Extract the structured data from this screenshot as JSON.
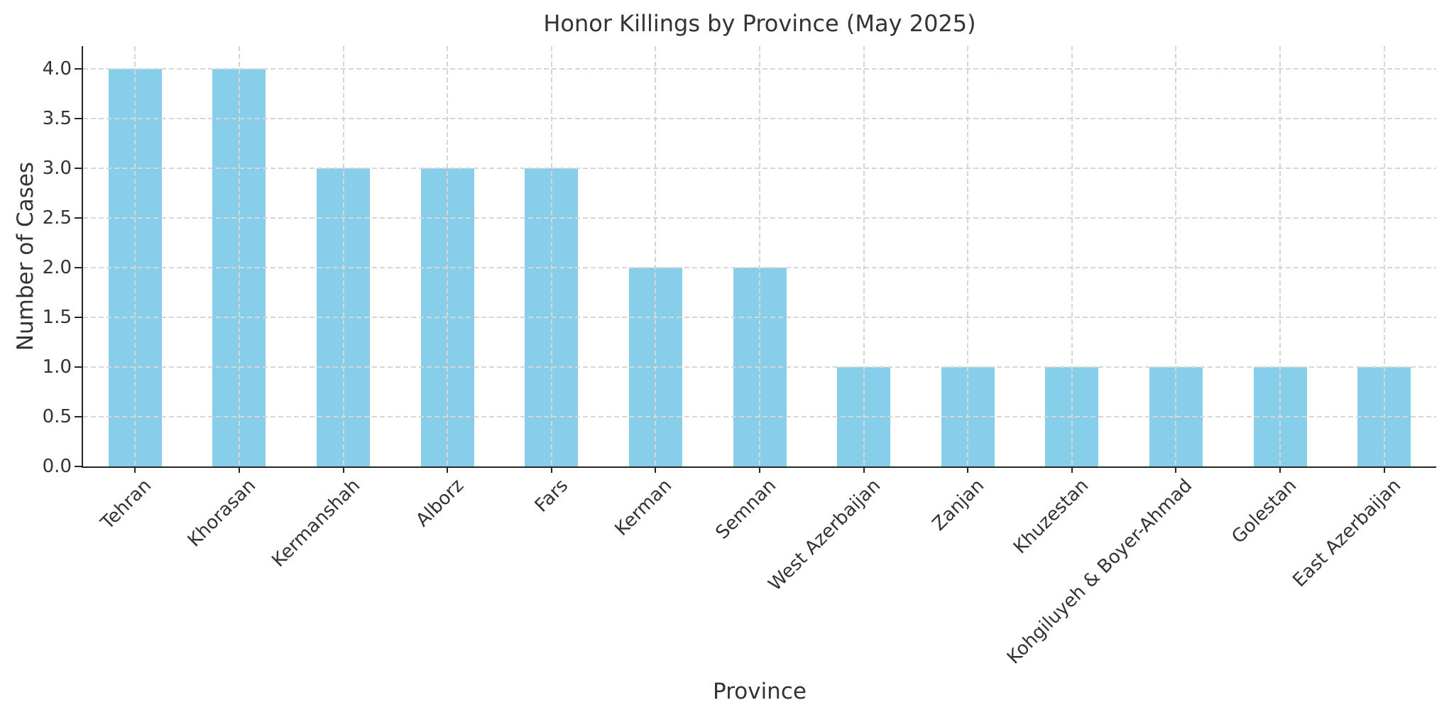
{
  "chart_data": {
    "type": "bar",
    "title": "Honor Killings by Province (May 2025)",
    "xlabel": "Province",
    "ylabel": "Number of Cases",
    "categories": [
      "Tehran",
      "Khorasan",
      "Kermanshah",
      "Alborz",
      "Fars",
      "Kerman",
      "Semnan",
      "West Azerbaijan",
      "Zanjan",
      "Khuzestan",
      "Kohgiluyeh & Boyer-Ahmad",
      "Golestan",
      "East Azerbaijan"
    ],
    "values": [
      4,
      4,
      3,
      3,
      3,
      2,
      2,
      1,
      1,
      1,
      1,
      1,
      1
    ],
    "yticks": [
      "0.0",
      "0.5",
      "1.0",
      "1.5",
      "2.0",
      "2.5",
      "3.0",
      "3.5",
      "4.0"
    ],
    "ylim": [
      0,
      4.2
    ],
    "grid": "dashed gridlines on both axes, drawn above bars",
    "legend_position": "none",
    "bar_color": "#87CEEB",
    "grid_color": "#d6d6d6",
    "axis_color": "#262626",
    "text_color": "#333333",
    "background_color": "#ffffff"
  }
}
